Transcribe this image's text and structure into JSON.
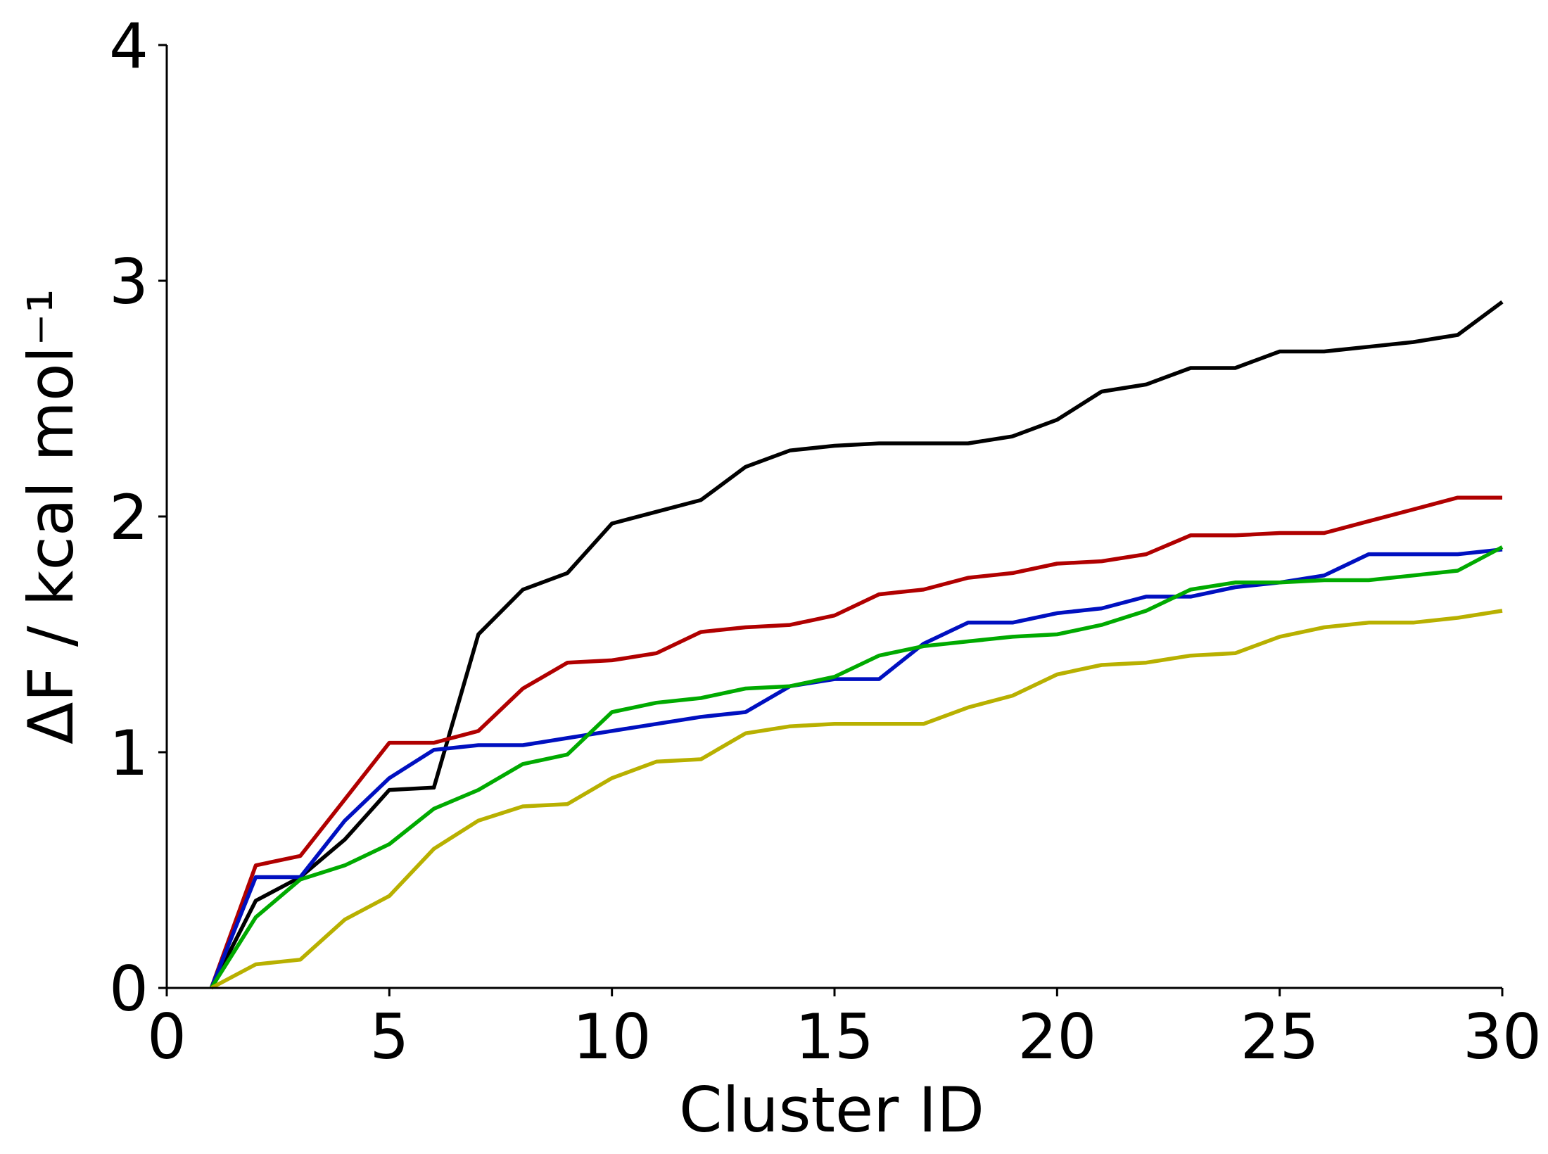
{
  "chart_data": {
    "type": "line",
    "title": "",
    "xlabel": "Cluster ID",
    "ylabel": "ΔF / kcal mol⁻¹",
    "xlim": [
      0,
      30
    ],
    "ylim": [
      0,
      4
    ],
    "xticks": [
      0,
      5,
      10,
      15,
      20,
      25,
      30
    ],
    "yticks": [
      0,
      1,
      2,
      3,
      4
    ],
    "xtick_labels": [
      "0",
      "5",
      "10",
      "15",
      "20",
      "25",
      "30"
    ],
    "ytick_labels": [
      "0",
      "1",
      "2",
      "3",
      "4"
    ],
    "grid": false,
    "legend": "none",
    "x": [
      1,
      2,
      3,
      4,
      5,
      6,
      7,
      8,
      9,
      10,
      11,
      12,
      13,
      14,
      15,
      16,
      17,
      18,
      19,
      20,
      21,
      22,
      23,
      24,
      25,
      26,
      27,
      28,
      29,
      30
    ],
    "series": [
      {
        "name": "black",
        "color": "#000000",
        "values": [
          0.0,
          0.37,
          0.47,
          0.63,
          0.84,
          0.85,
          1.5,
          1.69,
          1.76,
          1.97,
          2.02,
          2.07,
          2.21,
          2.28,
          2.3,
          2.31,
          2.31,
          2.31,
          2.34,
          2.41,
          2.53,
          2.56,
          2.63,
          2.63,
          2.7,
          2.7,
          2.72,
          2.74,
          2.77,
          2.91
        ]
      },
      {
        "name": "red",
        "color": "#b00000",
        "values": [
          0.0,
          0.52,
          0.56,
          0.8,
          1.04,
          1.04,
          1.09,
          1.27,
          1.38,
          1.39,
          1.42,
          1.51,
          1.53,
          1.54,
          1.58,
          1.67,
          1.69,
          1.74,
          1.76,
          1.8,
          1.81,
          1.84,
          1.92,
          1.92,
          1.93,
          1.93,
          1.98,
          2.03,
          2.08,
          2.08
        ]
      },
      {
        "name": "blue",
        "color": "#0010c0",
        "values": [
          0.0,
          0.47,
          0.47,
          0.71,
          0.89,
          1.01,
          1.03,
          1.03,
          1.06,
          1.09,
          1.12,
          1.15,
          1.17,
          1.28,
          1.31,
          1.31,
          1.46,
          1.55,
          1.55,
          1.59,
          1.61,
          1.66,
          1.66,
          1.7,
          1.72,
          1.75,
          1.84,
          1.84,
          1.84,
          1.86
        ]
      },
      {
        "name": "green",
        "color": "#00aa00",
        "values": [
          0.0,
          0.3,
          0.46,
          0.52,
          0.61,
          0.76,
          0.84,
          0.95,
          0.99,
          1.17,
          1.21,
          1.23,
          1.27,
          1.28,
          1.32,
          1.41,
          1.45,
          1.47,
          1.49,
          1.5,
          1.54,
          1.6,
          1.69,
          1.72,
          1.72,
          1.73,
          1.73,
          1.75,
          1.77,
          1.87
        ]
      },
      {
        "name": "olive",
        "color": "#b8b000",
        "values": [
          0.0,
          0.1,
          0.12,
          0.29,
          0.39,
          0.59,
          0.71,
          0.77,
          0.78,
          0.89,
          0.96,
          0.97,
          1.08,
          1.11,
          1.12,
          1.12,
          1.12,
          1.19,
          1.24,
          1.33,
          1.37,
          1.38,
          1.41,
          1.42,
          1.49,
          1.53,
          1.55,
          1.55,
          1.57,
          1.6
        ]
      }
    ]
  }
}
